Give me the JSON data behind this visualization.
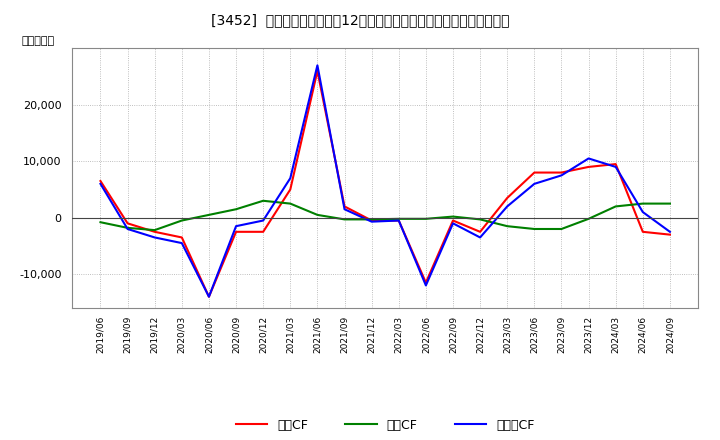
{
  "title": "[3452]  キャッシュフローの12か月移動合計の対前年同期増減額の推移",
  "ylabel": "（百万円）",
  "background_color": "#ffffff",
  "plot_bg_color": "#ffffff",
  "grid_color": "#aaaaaa",
  "dates": [
    "2019/06",
    "2019/09",
    "2019/12",
    "2020/03",
    "2020/06",
    "2020/09",
    "2020/12",
    "2021/03",
    "2021/06",
    "2021/09",
    "2021/12",
    "2022/03",
    "2022/06",
    "2022/09",
    "2022/12",
    "2023/03",
    "2023/06",
    "2023/09",
    "2023/12",
    "2024/03",
    "2024/06",
    "2024/09"
  ],
  "operating_cf": [
    6500,
    -1000,
    -2500,
    -3500,
    -14000,
    -2500,
    -2500,
    5000,
    26000,
    2000,
    -500,
    -500,
    -11500,
    -500,
    -2500,
    3500,
    8000,
    8000,
    9000,
    9500,
    -2500,
    -3000
  ],
  "investing_cf": [
    -800,
    -1800,
    -2200,
    -500,
    500,
    1500,
    3000,
    2500,
    500,
    -300,
    -300,
    -200,
    -200,
    200,
    -300,
    -1500,
    -2000,
    -2000,
    -200,
    2000,
    2500,
    2500
  ],
  "free_cf": [
    6000,
    -2000,
    -3500,
    -4500,
    -14000,
    -1500,
    -500,
    7000,
    27000,
    1500,
    -700,
    -500,
    -12000,
    -1000,
    -3500,
    2000,
    6000,
    7500,
    10500,
    9000,
    1000,
    -2500
  ],
  "operating_color": "#ff0000",
  "investing_color": "#008000",
  "free_color": "#0000ff",
  "ylim": [
    -16000,
    30000
  ],
  "yticks": [
    -10000,
    0,
    10000,
    20000
  ],
  "legend_labels": [
    "営業CF",
    "投資CF",
    "フリーCF"
  ]
}
